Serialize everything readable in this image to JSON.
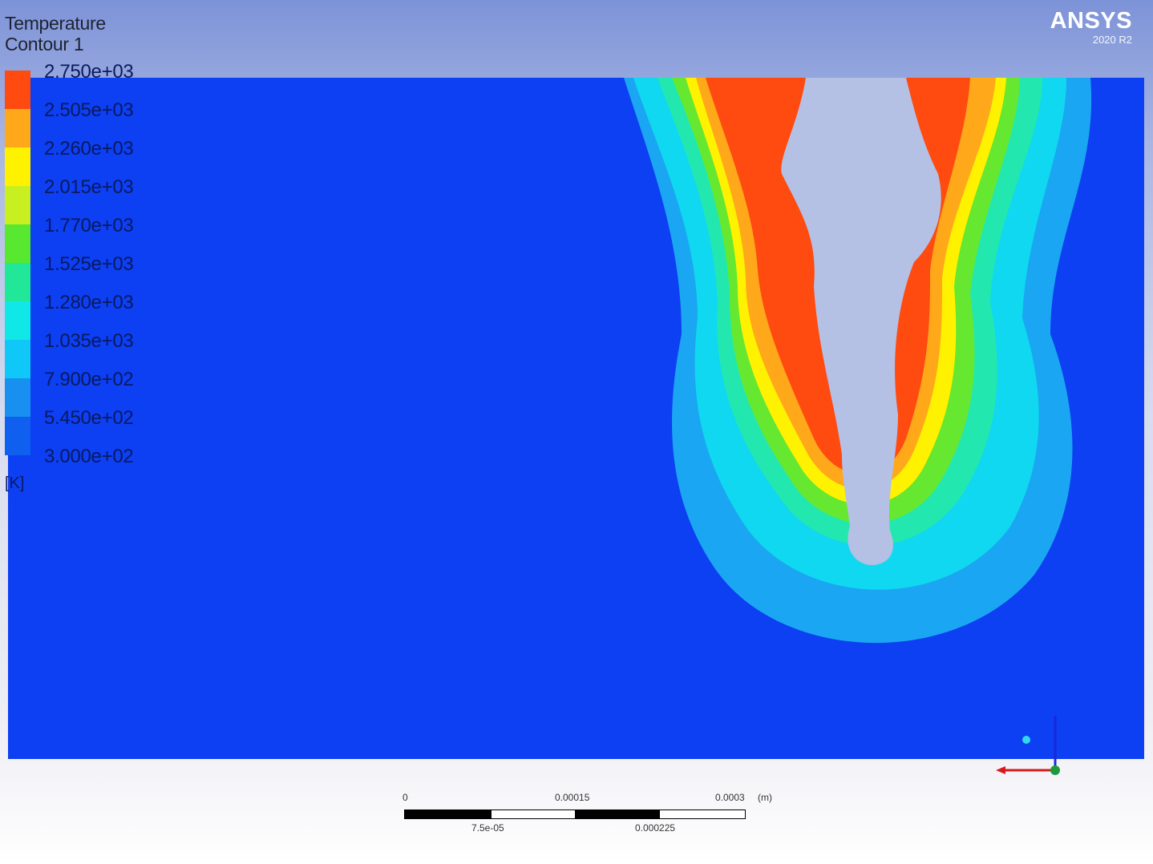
{
  "header": {
    "title_line1": "Temperature",
    "title_line2": "Contour 1"
  },
  "brand": {
    "name": "ANSYS",
    "version": "2020 R2"
  },
  "legend": {
    "unit": "[K]",
    "labels": [
      "2.750e+03",
      "2.505e+03",
      "2.260e+03",
      "2.015e+03",
      "1.770e+03",
      "1.525e+03",
      "1.280e+03",
      "1.035e+03",
      "7.900e+02",
      "5.450e+02",
      "3.000e+02"
    ],
    "colors": [
      "#ff4a10",
      "#ffa81a",
      "#fff200",
      "#c8f020",
      "#58e830",
      "#20e898",
      "#10e8e8",
      "#10c8f8",
      "#1890f0",
      "#1060f0"
    ]
  },
  "colors": {
    "background_blue": "#0d3ff3",
    "unmelted_region": "#b4c0e4"
  },
  "scale_bar": {
    "top_labels": [
      "0",
      "0.00015",
      "0.0003",
      "(m)"
    ],
    "bottom_labels": [
      "7.5e-05",
      "0.000225"
    ]
  },
  "triad": {
    "axes": [
      "x-axis (red)",
      "y-axis (blue)",
      "z-axis (green)"
    ]
  }
}
